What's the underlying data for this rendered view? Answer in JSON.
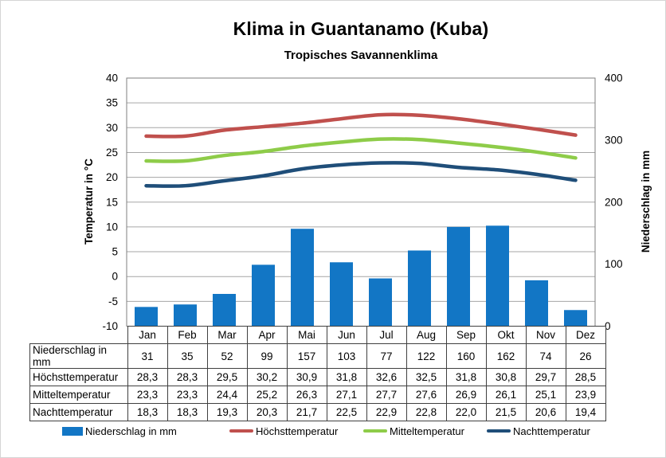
{
  "title": "Klima in Guantanamo (Kuba)",
  "subtitle": "Tropisches Savannenklima",
  "chart_data": {
    "type": "bar+line combo",
    "categories": [
      "Jan",
      "Feb",
      "Mar",
      "Apr",
      "Mai",
      "Jun",
      "Jul",
      "Aug",
      "Sep",
      "Okt",
      "Nov",
      "Dez"
    ],
    "series": [
      {
        "name": "Niederschlag in mm",
        "type": "bar",
        "axis": "right",
        "color": "#1276C5",
        "values": [
          31,
          35,
          52,
          99,
          157,
          103,
          77,
          122,
          160,
          162,
          74,
          26
        ]
      },
      {
        "name": "Höchsttemperatur",
        "type": "line",
        "axis": "left",
        "color": "#C0504D",
        "values": [
          28.3,
          28.3,
          29.5,
          30.2,
          30.9,
          31.8,
          32.6,
          32.5,
          31.8,
          30.8,
          29.7,
          28.5
        ]
      },
      {
        "name": "Mitteltemperatur",
        "type": "line",
        "axis": "left",
        "color": "#8ECC49",
        "values": [
          23.3,
          23.3,
          24.4,
          25.2,
          26.3,
          27.1,
          27.7,
          27.6,
          26.9,
          26.1,
          25.1,
          23.9
        ]
      },
      {
        "name": "Nachttemperatur",
        "type": "line",
        "axis": "left",
        "color": "#1F4E79",
        "values": [
          18.3,
          18.3,
          19.3,
          20.3,
          21.7,
          22.5,
          22.9,
          22.8,
          22.0,
          21.5,
          20.6,
          19.4
        ]
      }
    ],
    "left_axis": {
      "label": "Temperatur in °C",
      "min": -10,
      "max": 40,
      "step": 5,
      "ticks": [
        40,
        35,
        30,
        25,
        20,
        15,
        10,
        5,
        0,
        -5,
        -10
      ]
    },
    "right_axis": {
      "label": "Niederschlag in mm",
      "min": 0,
      "max": 400,
      "ticks": [
        400,
        300,
        200,
        100,
        0
      ]
    },
    "grid": "horizontal",
    "legend_position": "bottom"
  },
  "table": {
    "header": [
      "Jan",
      "Feb",
      "Mar",
      "Apr",
      "Mai",
      "Jun",
      "Jul",
      "Aug",
      "Sep",
      "Okt",
      "Nov",
      "Dez"
    ],
    "rows": [
      {
        "label": "Niederschlag in mm",
        "values": [
          "31",
          "35",
          "52",
          "99",
          "157",
          "103",
          "77",
          "122",
          "160",
          "162",
          "74",
          "26"
        ]
      },
      {
        "label": "Höchsttemperatur",
        "values": [
          "28,3",
          "28,3",
          "29,5",
          "30,2",
          "30,9",
          "31,8",
          "32,6",
          "32,5",
          "31,8",
          "30,8",
          "29,7",
          "28,5"
        ]
      },
      {
        "label": "Mitteltemperatur",
        "values": [
          "23,3",
          "23,3",
          "24,4",
          "25,2",
          "26,3",
          "27,1",
          "27,7",
          "27,6",
          "26,9",
          "26,1",
          "25,1",
          "23,9"
        ]
      },
      {
        "label": "Nachttemperatur",
        "values": [
          "18,3",
          "18,3",
          "19,3",
          "20,3",
          "21,7",
          "22,5",
          "22,9",
          "22,8",
          "22,0",
          "21,5",
          "20,6",
          "19,4"
        ]
      }
    ]
  },
  "legend": [
    {
      "label": "Niederschlag in mm",
      "marker": "bar",
      "color": "#1276C5"
    },
    {
      "label": "Höchsttemperatur",
      "marker": "line",
      "color": "#C0504D"
    },
    {
      "label": "Mitteltemperatur",
      "marker": "line",
      "color": "#8ECC49"
    },
    {
      "label": "Nachttemperatur",
      "marker": "line",
      "color": "#1F4E79"
    }
  ],
  "colors": {
    "gridline": "#A6A6A6",
    "plot_border": "#7F7F7F",
    "table_border": "#404040",
    "text": "#000000"
  }
}
